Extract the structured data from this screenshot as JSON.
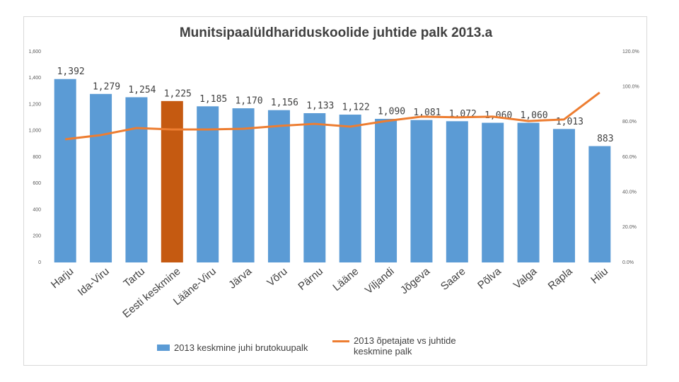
{
  "chart_data": {
    "type": "bar",
    "title": "Munitsipaalüldhariduskoolide juhtide palk 2013.a",
    "categories": [
      "Harju",
      "Ida-Viru",
      "Tartu",
      "Eesti keskmine",
      "Lääne-Viru",
      "Järva",
      "Võru",
      "Pärnu",
      "Lääne",
      "Viljandi",
      "Jõgeva",
      "Saare",
      "Põlva",
      "Valga",
      "Rapla",
      "Hiiu"
    ],
    "series": [
      {
        "name": "2013 keskmine juhi brutokuupalk",
        "type": "bar",
        "color": "#5b9bd5",
        "colors": [
          "#5b9bd5",
          "#5b9bd5",
          "#5b9bd5",
          "#c55a11",
          "#5b9bd5",
          "#5b9bd5",
          "#5b9bd5",
          "#5b9bd5",
          "#5b9bd5",
          "#5b9bd5",
          "#5b9bd5",
          "#5b9bd5",
          "#5b9bd5",
          "#5b9bd5",
          "#5b9bd5",
          "#5b9bd5"
        ],
        "values": [
          1392,
          1279,
          1254,
          1225,
          1185,
          1170,
          1156,
          1133,
          1122,
          1090,
          1081,
          1072,
          1060,
          1060,
          1013,
          883
        ],
        "value_labels": [
          "1,392",
          "1,279",
          "1,254",
          "1,225",
          "1,185",
          "1,170",
          "1,156",
          "1,133",
          "1,122",
          "1,090",
          "1,081",
          "1,072",
          "1,060",
          "1,060",
          "1,013",
          "883"
        ]
      },
      {
        "name": "2013 õpetajate vs juhtide keskmine palk",
        "type": "line",
        "axis": "y2",
        "color": "#ed7d31",
        "values": [
          70.1,
          72.5,
          76.5,
          75.7,
          75.7,
          76.1,
          77.7,
          78.9,
          77.3,
          80.5,
          83.0,
          82.6,
          83.0,
          80.5,
          81.4,
          96.7
        ]
      }
    ],
    "ylim": [
      0,
      1600
    ],
    "yticks": [
      0,
      200,
      400,
      600,
      800,
      {
        "value": 1000,
        "label": "1,000"
      },
      {
        "value": 1200,
        "label": "1,200"
      },
      {
        "value": 1400,
        "label": "1,400"
      },
      {
        "value": 1600,
        "label": "1,600"
      }
    ],
    "y2lim": [
      0,
      120
    ],
    "y2ticks": [
      {
        "value": 0,
        "label": "0.0%"
      },
      {
        "value": 20,
        "label": "20.0%"
      },
      {
        "value": 40,
        "label": "40.0%"
      },
      {
        "value": 60,
        "label": "60.0%"
      },
      {
        "value": 80,
        "label": "80.0%"
      },
      {
        "value": 100,
        "label": "100.0%"
      },
      {
        "value": 120,
        "label": "120.0%"
      }
    ],
    "grid": false,
    "legend": "bottom"
  }
}
